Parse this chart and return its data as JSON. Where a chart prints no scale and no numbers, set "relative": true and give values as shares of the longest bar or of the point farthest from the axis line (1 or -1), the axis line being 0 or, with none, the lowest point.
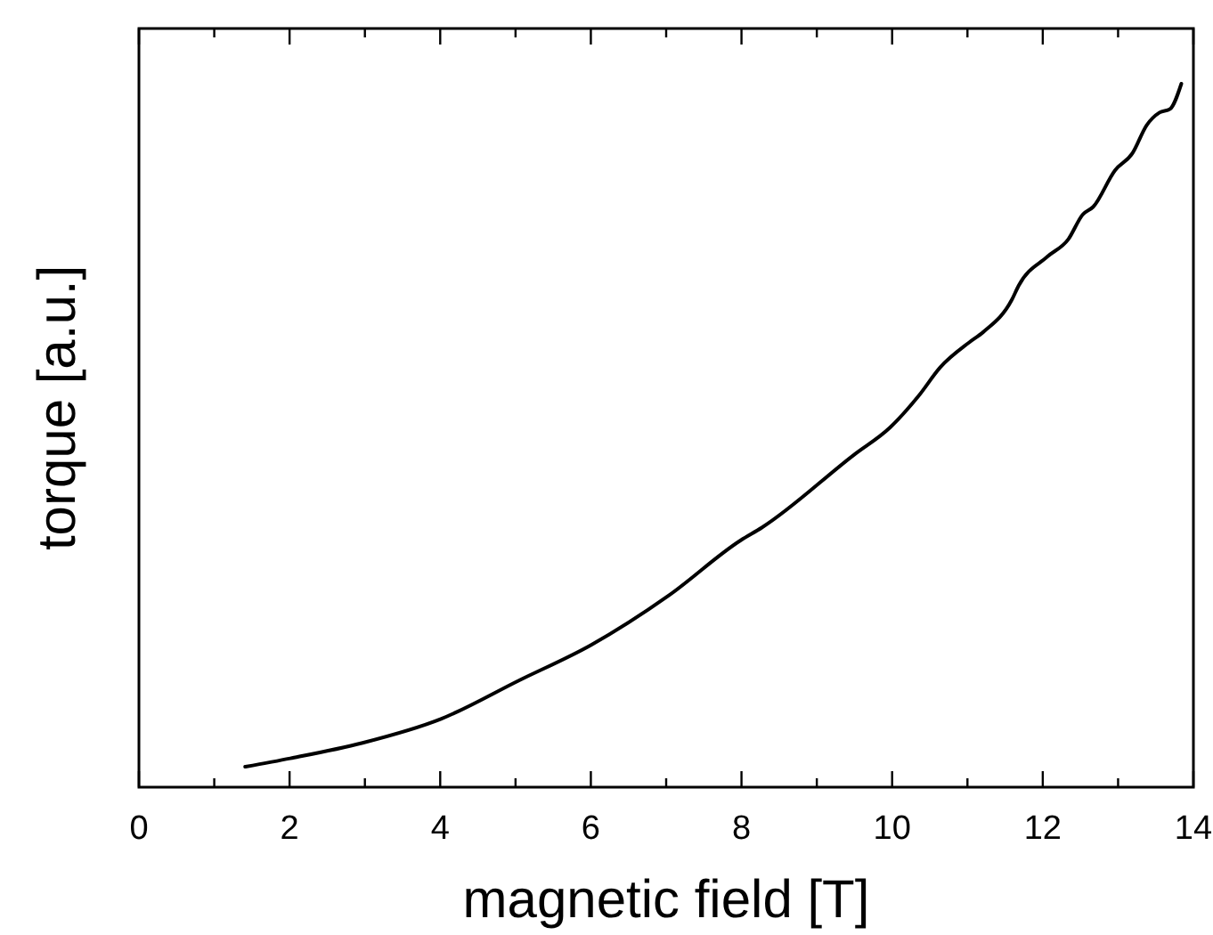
{
  "chart_data": {
    "type": "line",
    "relative": true,
    "xlabel": "magnetic field [T]",
    "ylabel": "torque [a.u.]",
    "xlim": [
      0,
      14
    ],
    "xticks": [
      0,
      {
        "value": 1,
        "label": null
      },
      2,
      {
        "value": 3,
        "label": null
      },
      4,
      {
        "value": 5,
        "label": null
      },
      6,
      {
        "value": 7,
        "label": null
      },
      8,
      {
        "value": 9,
        "label": null
      },
      10,
      {
        "value": 11,
        "label": null
      },
      12,
      {
        "value": 13,
        "label": null
      },
      14
    ],
    "x": [
      1.41,
      2.01,
      2.97,
      4.01,
      5.05,
      6.0,
      7.04,
      7.99,
      8.27,
      9.5,
      9.97,
      10.35,
      10.64,
      11.02,
      11.21,
      11.59,
      11.68,
      12.06,
      12.34,
      12.53,
      12.67,
      12.96,
      13.19,
      13.38,
      13.55,
      13.69,
      13.84
    ],
    "series": [
      {
        "color": "#000000",
        "values": [
          0.029,
          0.041,
          0.063,
          0.097,
          0.152,
          0.202,
          0.273,
          0.351,
          0.369,
          0.473,
          0.511,
          0.556,
          0.597,
          0.632,
          0.647,
          0.693,
          0.713,
          0.754,
          0.779,
          0.814,
          0.825,
          0.877,
          0.901,
          0.941,
          0.959,
          0.964,
          1.0
        ]
      }
    ]
  }
}
